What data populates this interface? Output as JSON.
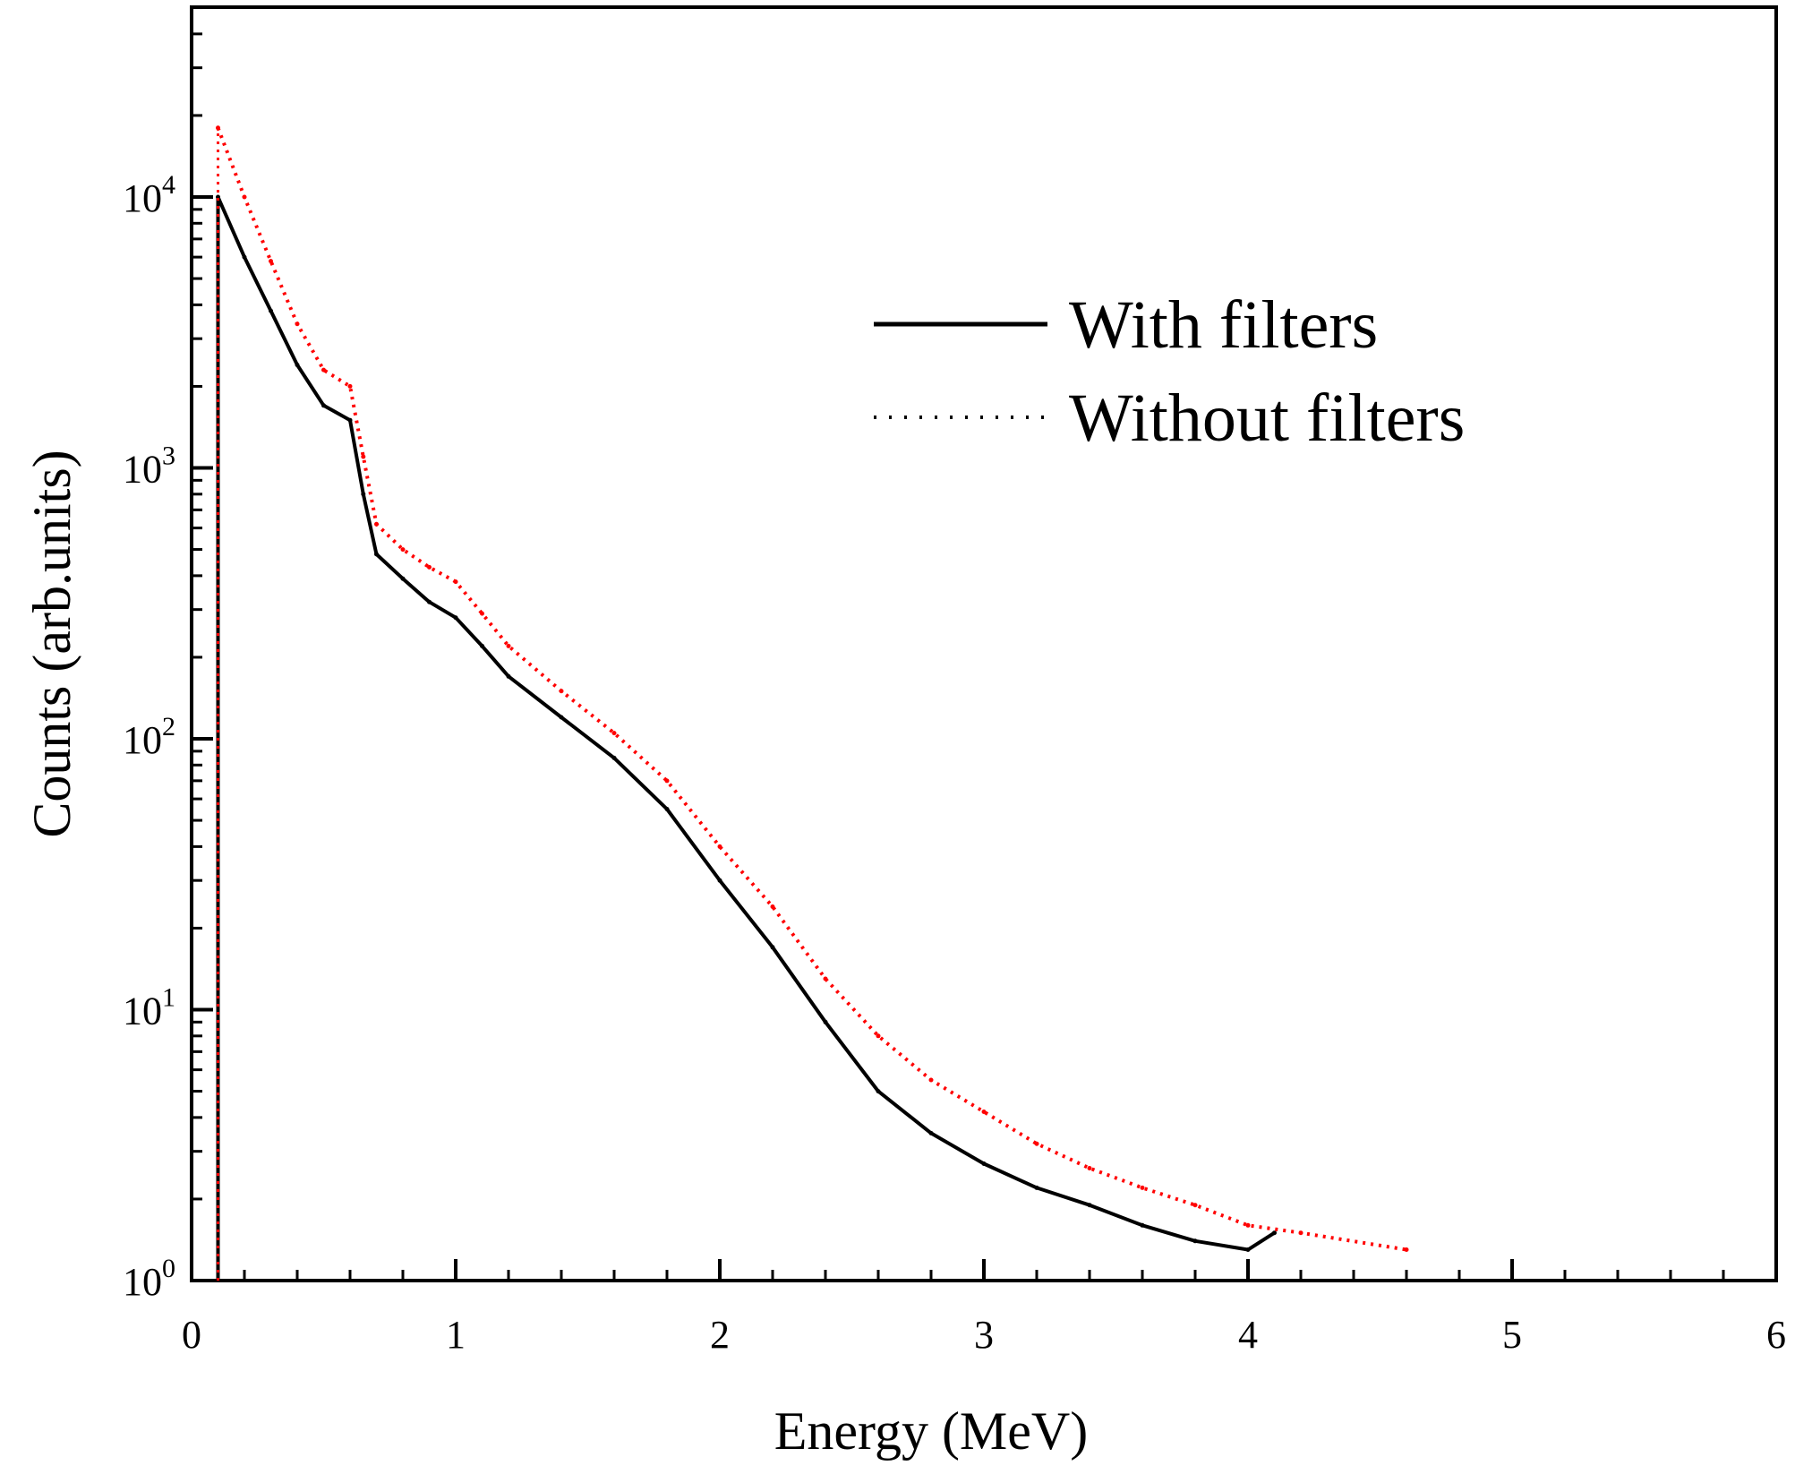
{
  "chart_data": {
    "type": "line",
    "title": "",
    "xlabel": "Energy (MeV)",
    "ylabel": "Counts (arb.units)",
    "xlim": [
      0,
      6
    ],
    "ylim": [
      1,
      50000
    ],
    "yscale": "log",
    "grid": false,
    "legend_position": "top-right",
    "x_ticks": [
      "0",
      "1",
      "2",
      "3",
      "4",
      "5",
      "6"
    ],
    "y_ticks": [
      {
        "base": "10",
        "exp": "0",
        "value": 1
      },
      {
        "base": "10",
        "exp": "1",
        "value": 10
      },
      {
        "base": "10",
        "exp": "2",
        "value": 100
      },
      {
        "base": "10",
        "exp": "3",
        "value": 1000
      },
      {
        "base": "10",
        "exp": "4",
        "value": 10000
      }
    ],
    "series": [
      {
        "name": "With filters",
        "color": "#000000",
        "style": "solid",
        "x": [
          0.1,
          0.2,
          0.3,
          0.4,
          0.5,
          0.6,
          0.65,
          0.7,
          0.8,
          0.9,
          1.0,
          1.1,
          1.2,
          1.4,
          1.6,
          1.8,
          2.0,
          2.2,
          2.4,
          2.6,
          2.8,
          3.0,
          3.2,
          3.4,
          3.6,
          3.8,
          4.0,
          4.1
        ],
        "y": [
          10000,
          6000,
          3800,
          2400,
          1700,
          1500,
          800,
          480,
          390,
          320,
          280,
          220,
          170,
          120,
          85,
          55,
          30,
          17,
          9,
          5,
          3.5,
          2.7,
          2.2,
          1.9,
          1.6,
          1.4,
          1.3,
          1.5
        ]
      },
      {
        "name": "Without filters",
        "color": "#ff0000",
        "style": "dotted",
        "x": [
          0.1,
          0.2,
          0.3,
          0.4,
          0.5,
          0.6,
          0.65,
          0.7,
          0.8,
          0.9,
          1.0,
          1.1,
          1.2,
          1.4,
          1.6,
          1.8,
          2.0,
          2.2,
          2.4,
          2.6,
          2.8,
          3.0,
          3.2,
          3.4,
          3.6,
          3.8,
          4.0,
          4.2,
          4.6
        ],
        "y": [
          18000,
          10000,
          5800,
          3400,
          2300,
          2000,
          1100,
          620,
          500,
          430,
          380,
          290,
          220,
          150,
          105,
          70,
          40,
          24,
          13,
          8,
          5.5,
          4.2,
          3.2,
          2.6,
          2.2,
          1.9,
          1.6,
          1.5,
          1.3
        ]
      }
    ]
  }
}
